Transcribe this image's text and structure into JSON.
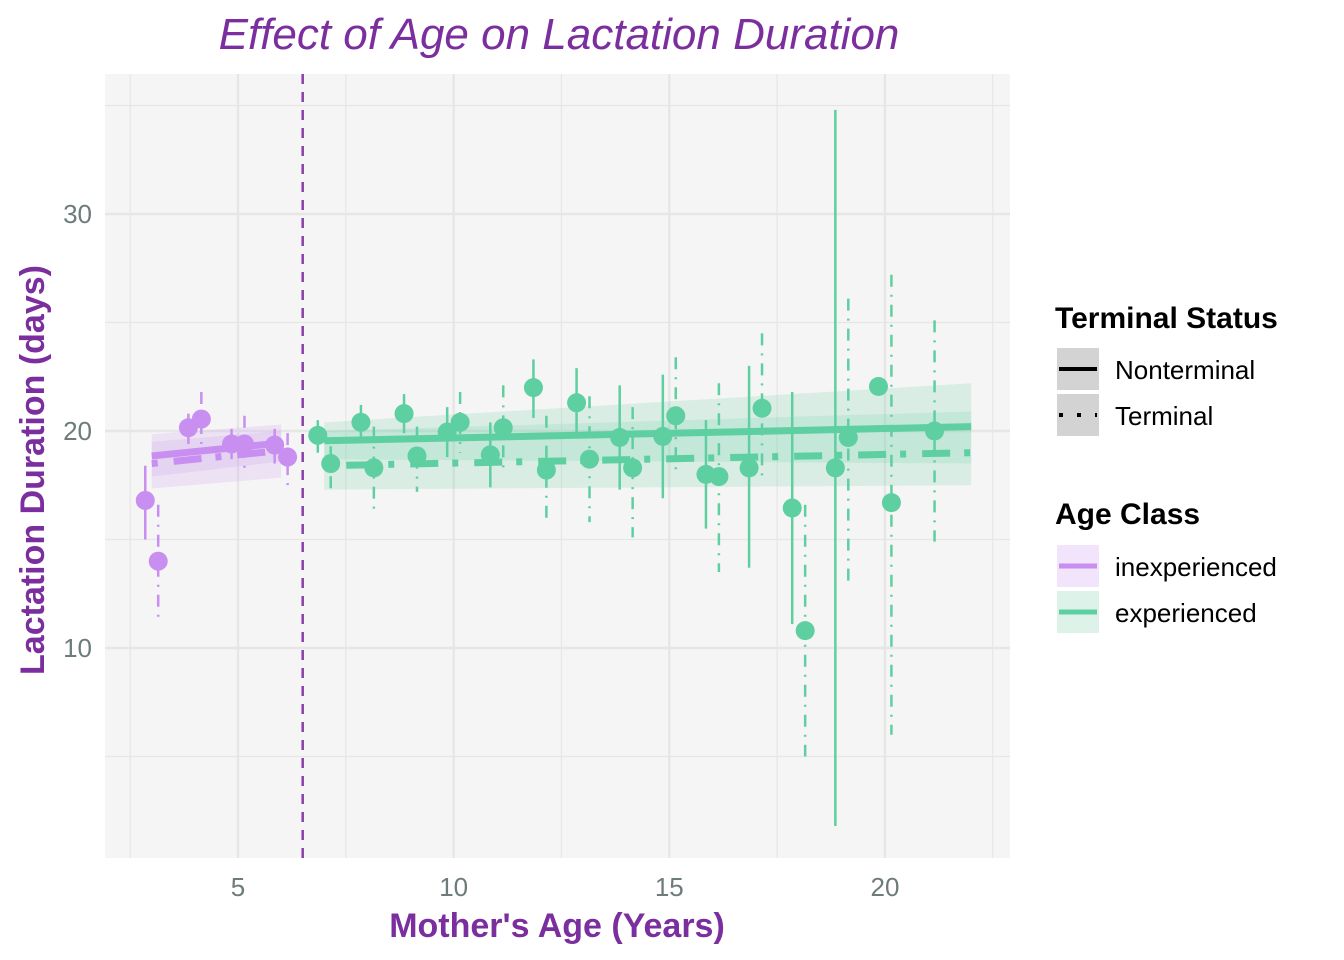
{
  "chart_data": {
    "type": "scatter",
    "title": "Effect of Age on Lactation Duration",
    "xlabel": "Mother's Age (Years)",
    "ylabel": "Lactation Duration (days)",
    "xlim": [
      2.5,
      23.5
    ],
    "ylim": [
      0,
      35
    ],
    "x_ticks": [
      5,
      10,
      15,
      20
    ],
    "x_tick_labels": [
      "5",
      "10",
      "15",
      "20"
    ],
    "y_ticks": [
      10,
      20,
      30
    ],
    "y_tick_labels": [
      "10",
      "20",
      "30"
    ],
    "grid": true,
    "vline": {
      "x": 6.5,
      "style": "dashed",
      "color": "#8a3fa8"
    },
    "colors": {
      "inexperienced": "#c88ef0",
      "experienced": "#5ecfa0",
      "panel_bg": "#f5f5f5",
      "grid": "#e6e6e6",
      "title": "#7b2f9e"
    },
    "points": [
      {
        "age_class": "inexperienced",
        "status": "Nonterminal",
        "x": 2.85,
        "y": 16.8,
        "lo": 15.0,
        "hi": 18.4
      },
      {
        "age_class": "inexperienced",
        "status": "Terminal",
        "x": 3.15,
        "y": 14.0,
        "lo": 11.2,
        "hi": 16.6
      },
      {
        "age_class": "inexperienced",
        "status": "Nonterminal",
        "x": 3.85,
        "y": 20.15,
        "lo": 19.4,
        "hi": 20.8
      },
      {
        "age_class": "inexperienced",
        "status": "Terminal",
        "x": 4.15,
        "y": 20.55,
        "lo": 19.4,
        "hi": 21.8
      },
      {
        "age_class": "inexperienced",
        "status": "Nonterminal",
        "x": 4.85,
        "y": 19.4,
        "lo": 18.7,
        "hi": 20.1
      },
      {
        "age_class": "inexperienced",
        "status": "Terminal",
        "x": 5.15,
        "y": 19.4,
        "lo": 18.1,
        "hi": 20.7
      },
      {
        "age_class": "inexperienced",
        "status": "Nonterminal",
        "x": 5.85,
        "y": 19.35,
        "lo": 18.5,
        "hi": 20.1
      },
      {
        "age_class": "inexperienced",
        "status": "Terminal",
        "x": 6.15,
        "y": 18.8,
        "lo": 17.5,
        "hi": 19.9
      },
      {
        "age_class": "experienced",
        "status": "Nonterminal",
        "x": 6.85,
        "y": 19.8,
        "lo": 19.0,
        "hi": 20.5
      },
      {
        "age_class": "experienced",
        "status": "Terminal",
        "x": 7.15,
        "y": 18.5,
        "lo": 17.1,
        "hi": 19.3
      },
      {
        "age_class": "experienced",
        "status": "Nonterminal",
        "x": 7.85,
        "y": 20.4,
        "lo": 19.6,
        "hi": 21.2
      },
      {
        "age_class": "experienced",
        "status": "Terminal",
        "x": 8.15,
        "y": 18.3,
        "lo": 16.4,
        "hi": 20.2
      },
      {
        "age_class": "experienced",
        "status": "Nonterminal",
        "x": 8.85,
        "y": 20.8,
        "lo": 19.9,
        "hi": 21.7
      },
      {
        "age_class": "experienced",
        "status": "Terminal",
        "x": 9.15,
        "y": 18.85,
        "lo": 17.2,
        "hi": 20.2
      },
      {
        "age_class": "experienced",
        "status": "Nonterminal",
        "x": 9.85,
        "y": 19.95,
        "lo": 18.8,
        "hi": 21.1
      },
      {
        "age_class": "experienced",
        "status": "Terminal",
        "x": 10.15,
        "y": 20.4,
        "lo": 19.0,
        "hi": 21.8
      },
      {
        "age_class": "experienced",
        "status": "Nonterminal",
        "x": 10.85,
        "y": 18.9,
        "lo": 17.4,
        "hi": 20.4
      },
      {
        "age_class": "experienced",
        "status": "Terminal",
        "x": 11.15,
        "y": 20.15,
        "lo": 18.3,
        "hi": 22.1
      },
      {
        "age_class": "experienced",
        "status": "Nonterminal",
        "x": 11.85,
        "y": 22.0,
        "lo": 20.6,
        "hi": 23.3
      },
      {
        "age_class": "experienced",
        "status": "Terminal",
        "x": 12.15,
        "y": 18.2,
        "lo": 15.7,
        "hi": 20.7
      },
      {
        "age_class": "experienced",
        "status": "Nonterminal",
        "x": 12.85,
        "y": 21.3,
        "lo": 19.7,
        "hi": 22.9
      },
      {
        "age_class": "experienced",
        "status": "Terminal",
        "x": 13.15,
        "y": 18.7,
        "lo": 15.8,
        "hi": 21.6
      },
      {
        "age_class": "experienced",
        "status": "Nonterminal",
        "x": 13.85,
        "y": 19.7,
        "lo": 17.3,
        "hi": 22.1
      },
      {
        "age_class": "experienced",
        "status": "Terminal",
        "x": 14.15,
        "y": 18.3,
        "lo": 15.1,
        "hi": 21.1
      },
      {
        "age_class": "experienced",
        "status": "Nonterminal",
        "x": 14.85,
        "y": 19.75,
        "lo": 16.9,
        "hi": 22.6
      },
      {
        "age_class": "experienced",
        "status": "Terminal",
        "x": 15.15,
        "y": 20.7,
        "lo": 18.0,
        "hi": 23.4
      },
      {
        "age_class": "experienced",
        "status": "Nonterminal",
        "x": 15.85,
        "y": 18.0,
        "lo": 15.5,
        "hi": 20.5
      },
      {
        "age_class": "experienced",
        "status": "Terminal",
        "x": 16.15,
        "y": 17.9,
        "lo": 13.5,
        "hi": 22.2
      },
      {
        "age_class": "experienced",
        "status": "Nonterminal",
        "x": 16.85,
        "y": 18.3,
        "lo": 13.7,
        "hi": 23.0
      },
      {
        "age_class": "experienced",
        "status": "Terminal",
        "x": 17.15,
        "y": 21.05,
        "lo": 17.6,
        "hi": 24.5
      },
      {
        "age_class": "experienced",
        "status": "Nonterminal",
        "x": 17.85,
        "y": 16.45,
        "lo": 11.1,
        "hi": 21.8
      },
      {
        "age_class": "experienced",
        "status": "Terminal",
        "x": 18.15,
        "y": 10.8,
        "lo": 5.0,
        "hi": 16.6
      },
      {
        "age_class": "experienced",
        "status": "Nonterminal",
        "x": 18.85,
        "y": 18.3,
        "lo": 1.8,
        "hi": 34.8
      },
      {
        "age_class": "experienced",
        "status": "Terminal",
        "x": 19.15,
        "y": 19.7,
        "lo": 13.0,
        "hi": 26.1
      },
      {
        "age_class": "experienced",
        "status": "Nonterminal",
        "x": 19.85,
        "y": 22.05,
        "lo": 22.05,
        "hi": 22.05
      },
      {
        "age_class": "experienced",
        "status": "Terminal",
        "x": 20.15,
        "y": 16.7,
        "lo": 6.0,
        "hi": 27.2
      },
      {
        "age_class": "experienced",
        "status": "Terminal",
        "x": 21.15,
        "y": 20.0,
        "lo": 14.9,
        "hi": 25.1
      }
    ],
    "fits": [
      {
        "age_class": "inexperienced",
        "status": "Nonterminal",
        "x": [
          3,
          6
        ],
        "y": [
          18.85,
          19.45
        ],
        "ci_lo": [
          17.9,
          18.6
        ],
        "ci_hi": [
          19.85,
          20.3
        ]
      },
      {
        "age_class": "inexperienced",
        "status": "Terminal",
        "x": [
          3,
          6
        ],
        "y": [
          18.5,
          19.1
        ],
        "ci_lo": [
          17.35,
          17.85
        ],
        "ci_hi": [
          19.5,
          20.0
        ]
      },
      {
        "age_class": "experienced",
        "status": "Nonterminal",
        "x": [
          7,
          22
        ],
        "y": [
          19.55,
          20.2
        ],
        "ci_lo": [
          18.7,
          18.5
        ],
        "ci_hi": [
          20.4,
          22.2
        ]
      },
      {
        "age_class": "experienced",
        "status": "Terminal",
        "x": [
          7,
          22
        ],
        "y": [
          18.4,
          19.0
        ],
        "ci_lo": [
          17.3,
          17.5
        ],
        "ci_hi": [
          20.0,
          20.9
        ]
      }
    ],
    "legend": {
      "position": "right",
      "groups": [
        {
          "title": "Terminal Status",
          "items": [
            {
              "label": "Nonterminal",
              "linetype": "solid"
            },
            {
              "label": "Terminal",
              "linetype": "dotted"
            }
          ]
        },
        {
          "title": "Age Class",
          "items": [
            {
              "label": "inexperienced",
              "color": "#c88ef0",
              "fill": "#f1e4fb"
            },
            {
              "label": "experienced",
              "color": "#5ecfa0",
              "fill": "#ddf3ea"
            }
          ]
        }
      ]
    }
  }
}
